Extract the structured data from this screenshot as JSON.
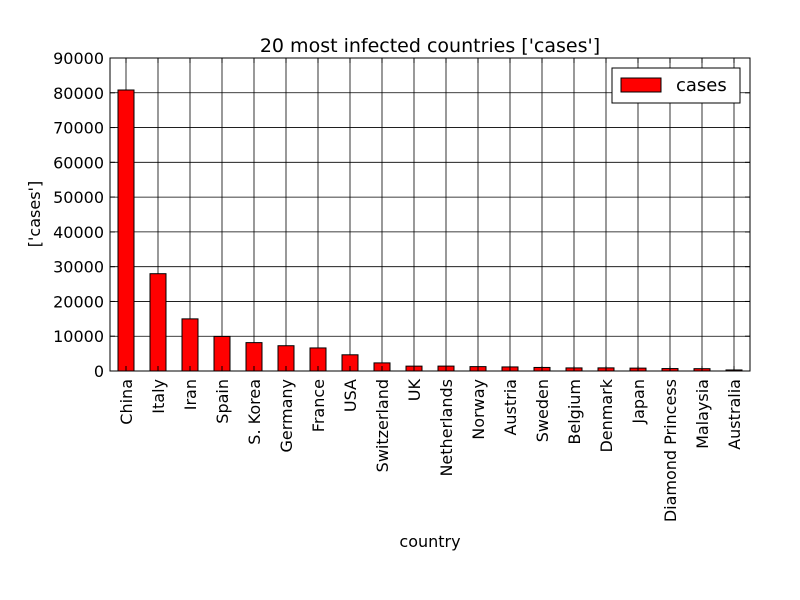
{
  "chart_data": {
    "type": "bar",
    "title": "20 most infected countries ['cases']",
    "xlabel": "country",
    "ylabel": "['cases']",
    "categories": [
      "China",
      "Italy",
      "Iran",
      "Spain",
      "S. Korea",
      "Germany",
      "France",
      "USA",
      "Switzerland",
      "UK",
      "Netherlands",
      "Norway",
      "Austria",
      "Sweden",
      "Belgium",
      "Denmark",
      "Japan",
      "Diamond Princess",
      "Malaysia",
      "Australia"
    ],
    "series": [
      {
        "name": "cases",
        "color": "#ff0000",
        "values": [
          80800,
          27980,
          14990,
          9940,
          8160,
          7270,
          6630,
          4660,
          2330,
          1400,
          1410,
          1260,
          1170,
          1020,
          890,
          900,
          830,
          700,
          670,
          300
        ]
      }
    ],
    "ylim": [
      0,
      90000
    ],
    "yticks": [
      0,
      10000,
      20000,
      30000,
      40000,
      50000,
      60000,
      70000,
      80000,
      90000
    ],
    "grid": true,
    "legend_position": "top-right"
  }
}
